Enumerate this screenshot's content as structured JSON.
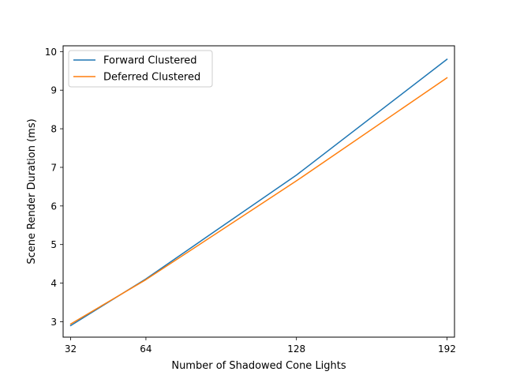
{
  "chart_data": {
    "type": "line",
    "title": "",
    "xlabel": "Number of Shadowed Cone Lights",
    "ylabel": "Scene Render Duration (ms)",
    "x": [
      32,
      64,
      128,
      192
    ],
    "x_tick_labels": [
      "32",
      "64",
      "128",
      "192"
    ],
    "y_ticks": [
      3,
      4,
      5,
      6,
      7,
      8,
      9,
      10
    ],
    "y_tick_labels": [
      "3",
      "4",
      "5",
      "6",
      "7",
      "8",
      "9",
      "10"
    ],
    "xlim": [
      28.8,
      195.2
    ],
    "ylim": [
      2.6,
      10.15
    ],
    "grid": false,
    "legend_position": "upper-left",
    "series": [
      {
        "name": "Forward Clustered",
        "color": "#1f77b4",
        "values": [
          2.9,
          4.11,
          6.8,
          9.8
        ]
      },
      {
        "name": "Deferred Clustered",
        "color": "#ff7f0e",
        "values": [
          2.94,
          4.09,
          6.65,
          9.32
        ]
      }
    ]
  }
}
